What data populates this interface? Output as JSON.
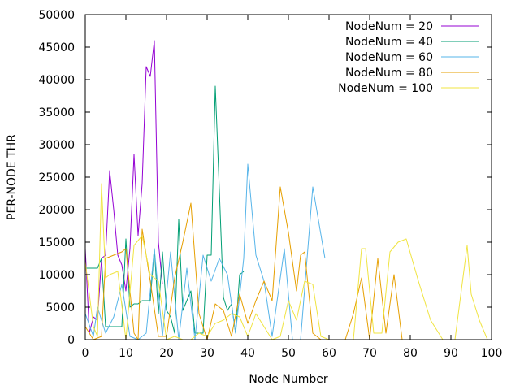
{
  "chart_data": {
    "type": "line",
    "title": "",
    "xlabel": "Node Number",
    "ylabel": "PER-NODE THR",
    "xlim": [
      0,
      100
    ],
    "ylim": [
      0,
      50000
    ],
    "xticks": [
      0,
      10,
      20,
      30,
      40,
      50,
      60,
      70,
      80,
      90,
      100
    ],
    "yticks": [
      0,
      5000,
      10000,
      15000,
      20000,
      25000,
      30000,
      35000,
      40000,
      45000,
      50000
    ],
    "legend_position": "top-right",
    "grid": false,
    "series": [
      {
        "name": "NodeNum = 20",
        "color": "#9400d3",
        "x": [
          0,
          1,
          2,
          3,
          4,
          5,
          6,
          7,
          8,
          9,
          10,
          11,
          12,
          13,
          14,
          15,
          16,
          17,
          18,
          19
        ],
        "y": [
          14000,
          1000,
          3500,
          3000,
          12500,
          13000,
          26000,
          20000,
          13000,
          11500,
          7500,
          14000,
          28500,
          16000,
          24000,
          42000,
          40500,
          46000,
          15000,
          8500
        ]
      },
      {
        "name": "NodeNum = 40",
        "color": "#009e73",
        "x": [
          0,
          1,
          2,
          3,
          4,
          5,
          6,
          7,
          8,
          9,
          10,
          11,
          12,
          13,
          14,
          15,
          16,
          17,
          18,
          19,
          20,
          21,
          22,
          23,
          24,
          25,
          26,
          27,
          28,
          29,
          30,
          31,
          32,
          33,
          34,
          35,
          36,
          37,
          38,
          39
        ],
        "y": [
          11000,
          11000,
          11000,
          11000,
          12500,
          2000,
          2000,
          2000,
          2000,
          2000,
          15500,
          5000,
          5500,
          5500,
          6000,
          6000,
          6000,
          14000,
          4000,
          13500,
          4500,
          3500,
          1000,
          18500,
          4500,
          6000,
          7500,
          1000,
          1000,
          1000,
          13000,
          13000,
          39000,
          23000,
          6500,
          4500,
          5500,
          1000,
          10000,
          10500
        ]
      },
      {
        "name": "NodeNum = 60",
        "color": "#56b4e9",
        "x": [
          0,
          2,
          3,
          5,
          7,
          9,
          11,
          13,
          15,
          17,
          19,
          21,
          23,
          25,
          27,
          29,
          31,
          33,
          35,
          37,
          39,
          40,
          42,
          44,
          46,
          49,
          51,
          53,
          56,
          59
        ],
        "y": [
          4000,
          500,
          5000,
          1000,
          3500,
          8500,
          500,
          0,
          1000,
          14000,
          500,
          13500,
          0,
          11000,
          0,
          13000,
          9000,
          12500,
          10000,
          1000,
          12500,
          27000,
          13000,
          9000,
          500,
          14000,
          0,
          0,
          23500,
          12500
        ]
      },
      {
        "name": "NodeNum = 80",
        "color": "#e69f00",
        "x": [
          0,
          2,
          4,
          5,
          7,
          9,
          10,
          12,
          13,
          14,
          16,
          18,
          20,
          22,
          24,
          26,
          28,
          30,
          32,
          34,
          36,
          38,
          40,
          42,
          44,
          46,
          48,
          50,
          52,
          53,
          54,
          56,
          58,
          60,
          62,
          64,
          66,
          68,
          70,
          72,
          74,
          76,
          78,
          80
        ],
        "y": [
          2000,
          0,
          500,
          12500,
          13000,
          13500,
          14000,
          1000,
          0,
          17000,
          9000,
          500,
          500,
          9500,
          15000,
          21000,
          4000,
          0,
          5500,
          4500,
          500,
          7000,
          2500,
          6000,
          9000,
          6000,
          23500,
          16500,
          7500,
          13000,
          13500,
          1000,
          0,
          0,
          0,
          0,
          4000,
          9500,
          0,
          12500,
          1000,
          10000,
          0,
          0
        ]
      },
      {
        "name": "NodeNum = 100",
        "color": "#f0e442",
        "x": [
          0,
          2,
          3,
          4,
          5,
          6,
          8,
          10,
          12,
          14,
          16,
          18,
          20,
          22,
          24,
          26,
          28,
          30,
          32,
          34,
          36,
          38,
          40,
          42,
          44,
          46,
          48,
          50,
          52,
          54,
          56,
          58,
          60,
          62,
          64,
          66,
          68,
          69,
          71,
          73,
          75,
          77,
          79,
          82,
          85,
          88,
          91,
          94,
          95,
          97,
          99
        ],
        "y": [
          12000,
          2000,
          500,
          24000,
          9500,
          10000,
          10500,
          0,
          14500,
          16000,
          10000,
          9000,
          0,
          500,
          0,
          0,
          1000,
          500,
          2500,
          3000,
          4000,
          3500,
          500,
          4000,
          2000,
          0,
          500,
          6000,
          3000,
          9000,
          8500,
          500,
          0,
          0,
          0,
          0,
          14000,
          14000,
          1000,
          1000,
          13500,
          15000,
          15500,
          9000,
          3000,
          0,
          0,
          14500,
          7000,
          3000,
          0
        ]
      }
    ]
  }
}
